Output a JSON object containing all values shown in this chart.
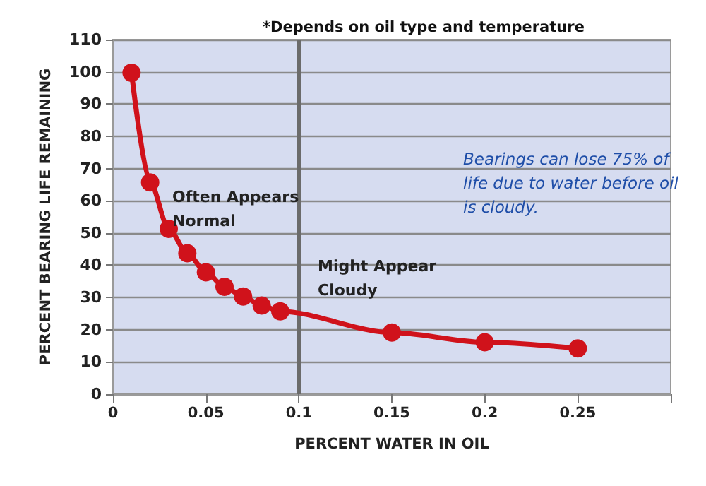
{
  "chart_data": {
    "type": "line",
    "xlabel": "PERCENT WATER IN OIL",
    "ylabel": "PERCENT BEARING LIFE REMAINING",
    "x": [
      0.01,
      0.02,
      0.03,
      0.04,
      0.05,
      0.06,
      0.07,
      0.08,
      0.09,
      0.15,
      0.2,
      0.25
    ],
    "series": [
      {
        "color": "#d0121b",
        "values": [
          99.7,
          65.7,
          51.3,
          43.7,
          37.8,
          33.3,
          30.3,
          27.5,
          25.7,
          19.1,
          16.1,
          14.2
        ]
      }
    ],
    "xlim": [
      0,
      0.3
    ],
    "xticks": [
      0,
      0.05,
      0.1,
      0.15,
      0.2,
      0.25,
      {
        "value": 0.3,
        "label": null
      }
    ],
    "ylim": [
      0,
      110
    ],
    "yticks": [
      0,
      10,
      20,
      30,
      40,
      50,
      60,
      70,
      80,
      90,
      100,
      110
    ],
    "grid": "y",
    "marker": "circle",
    "line_style": "solid",
    "ref_lines": [
      {
        "axis": "x",
        "value": 0.1,
        "color": "#6b6b6b"
      }
    ],
    "annotations": [
      "*Depends on oil type and temperature",
      "Often Appears Normal",
      "Might Appear Cloudy",
      "Bearings can lose 75% of life due to water before oil is cloudy."
    ]
  }
}
